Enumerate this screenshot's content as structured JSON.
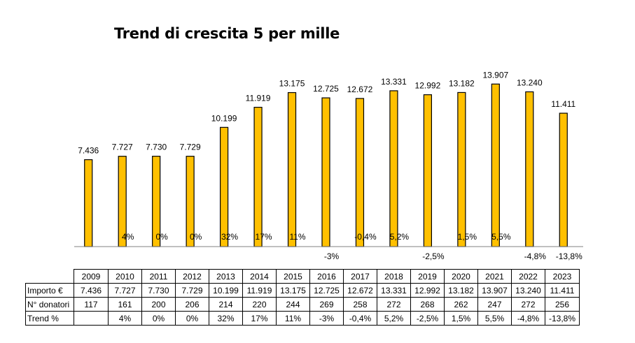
{
  "chart_data": {
    "type": "bar",
    "title": "Trend di crescita 5 per mille",
    "categories": [
      "2009",
      "2010",
      "2011",
      "2012",
      "2013",
      "2014",
      "2015",
      "2016",
      "2017",
      "2018",
      "2019",
      "2020",
      "2021",
      "2022",
      "2023"
    ],
    "series": [
      {
        "values": [
          7436,
          7727,
          7730,
          7729,
          10199,
          11919,
          13175,
          12725,
          12672,
          13331,
          12992,
          13182,
          13907,
          13240,
          11411
        ],
        "labels": [
          "7.436",
          "7.727",
          "7.730",
          "7.729",
          "10.199",
          "11.919",
          "13.175",
          "12.725",
          "12.672",
          "13.331",
          "12.992",
          "13.182",
          "13.907",
          "13.240",
          "11.411"
        ],
        "color": "#FFC000",
        "stroke": "#000000"
      }
    ],
    "trend_labels": [
      "",
      "4%",
      "0%",
      "0%",
      "32%",
      "17%",
      "11%",
      "-3%",
      "-0,4%",
      "5,2%",
      "-2,5%",
      "1,5%",
      "5,5%",
      "-4,8%",
      "-13,8%"
    ],
    "trend_values": [
      null,
      4,
      0,
      0,
      32,
      17,
      11,
      -3,
      -0.4,
      5.2,
      -2.5,
      1.5,
      5.5,
      -4.8,
      -13.8
    ],
    "ylim": [
      0,
      15000
    ],
    "grid": false,
    "legend": "none"
  },
  "table": {
    "header": [
      "2009",
      "2010",
      "2011",
      "2012",
      "2013",
      "2014",
      "2015",
      "2016",
      "2017",
      "2018",
      "2019",
      "2020",
      "2021",
      "2022",
      "2023"
    ],
    "rows": [
      {
        "label": "Importo €",
        "cells": [
          "7.436",
          "7.727",
          "7.730",
          "7.729",
          "10.199",
          "11.919",
          "13.175",
          "12.725",
          "12.672",
          "13.331",
          "12.992",
          "13.182",
          "13.907",
          "13.240",
          "11.411"
        ]
      },
      {
        "label": "N° donatori",
        "cells": [
          "117",
          "161",
          "200",
          "206",
          "214",
          "220",
          "244",
          "269",
          "258",
          "272",
          "268",
          "262",
          "247",
          "272",
          "256"
        ]
      },
      {
        "label": "Trend %",
        "cells": [
          "",
          "4%",
          "0%",
          "0%",
          "32%",
          "17%",
          "11%",
          "-3%",
          "-0,4%",
          "5,2%",
          "-2,5%",
          "1,5%",
          "5,5%",
          "-4,8%",
          "-13,8%"
        ]
      }
    ]
  }
}
